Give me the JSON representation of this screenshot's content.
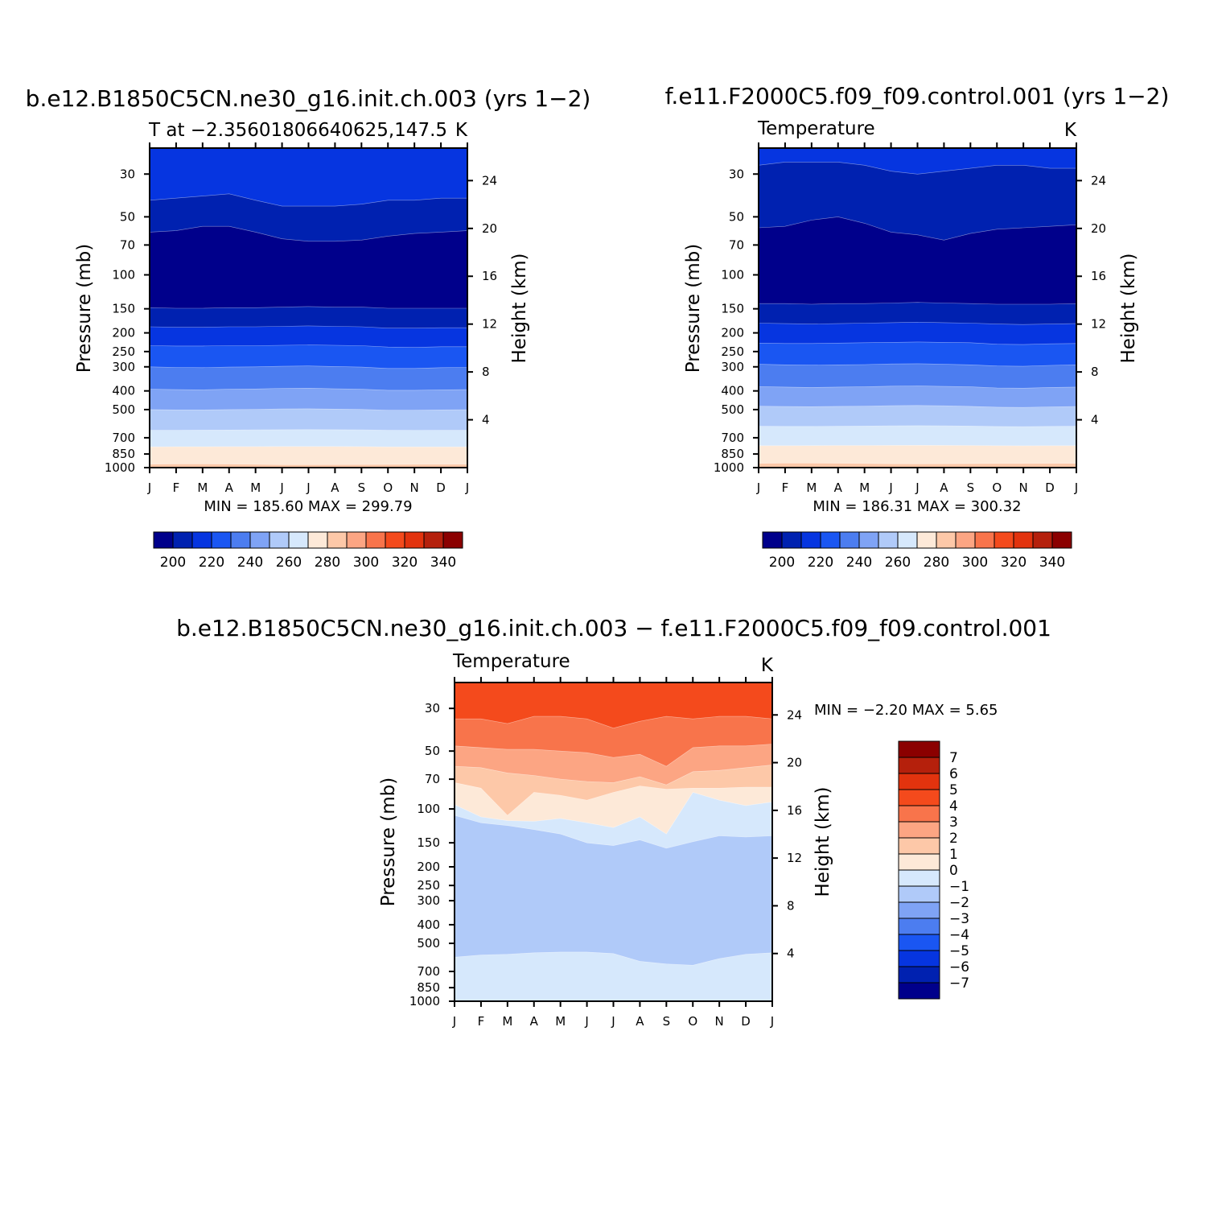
{
  "scales": {
    "abs": {
      "colors": [
        "#00008b",
        "#0021b0",
        "#0635e0",
        "#1a56f2",
        "#4c7df0",
        "#7fa3f5",
        "#b0caf9",
        "#d6e8fc",
        "#fde9d8",
        "#fdc8a8",
        "#fca583",
        "#f8744b",
        "#f44a1c",
        "#e2330e",
        "#b5200c",
        "#8b0000"
      ],
      "labels": [
        "200",
        "220",
        "240",
        "260",
        "280",
        "300",
        "320",
        "340"
      ]
    },
    "diff": {
      "colors": [
        "#00008b",
        "#0021b0",
        "#0635e0",
        "#1a56f2",
        "#4c7df0",
        "#7fa3f5",
        "#b0caf9",
        "#d6e8fc",
        "#fde9d8",
        "#fdc8a8",
        "#fca583",
        "#f8744b",
        "#f44a1c",
        "#e2330e",
        "#b5200c",
        "#8b0000"
      ],
      "labels": [
        "-7",
        "-6",
        "-5",
        "-4",
        "-3",
        "-2",
        "-1",
        "0",
        "1",
        "2",
        "3",
        "4",
        "5",
        "6",
        "7"
      ]
    }
  },
  "chart_data": [
    {
      "type": "contour",
      "title": "b.e12.B1850C5CN.ne30_g16.init.ch.003 (yrs 1−2)",
      "subtitle_left": "T at −2.35601806640625,147.5",
      "subtitle_right": "K",
      "xlabel": "",
      "ylabel": "Pressure (mb)",
      "ylabel_right": "Height (km)",
      "x_ticks": [
        "J",
        "F",
        "M",
        "A",
        "M",
        "J",
        "J",
        "A",
        "S",
        "O",
        "N",
        "D",
        "J"
      ],
      "y_ticks": [
        "30",
        "50",
        "70",
        "100",
        "150",
        "200",
        "250",
        "300",
        "400",
        "500",
        "700",
        "850",
        "1000"
      ],
      "y_ticks_right": [
        "24",
        "20",
        "16",
        "12",
        "8",
        "4"
      ],
      "stats": "MIN = 185.60 MAX = 299.79",
      "colorbar": "abs",
      "bands": [
        {
          "color_index": 2,
          "pressure_top_edge": [
            0,
            0,
            0,
            0,
            0,
            0,
            0,
            0,
            0,
            0,
            0,
            0,
            0
          ]
        },
        {
          "color_index": 1,
          "pressure_top_edge": [
            41,
            40,
            39,
            38,
            41,
            44,
            44,
            44,
            43,
            41,
            41,
            40,
            40
          ]
        },
        {
          "color_index": 0,
          "pressure_top_edge": [
            60,
            59,
            56,
            56,
            60,
            65,
            67,
            67,
            66,
            63,
            61,
            60,
            59
          ]
        },
        {
          "color_index": 1,
          "pressure_top_edge": [
            148,
            149,
            149,
            148,
            148,
            147,
            146,
            147,
            147,
            149,
            149,
            149,
            149
          ]
        },
        {
          "color_index": 2,
          "pressure_top_edge": [
            186,
            187,
            187,
            186,
            186,
            185,
            184,
            185,
            186,
            189,
            189,
            188,
            188
          ]
        },
        {
          "color_index": 3,
          "pressure_top_edge": [
            233,
            234,
            234,
            233,
            233,
            232,
            231,
            232,
            233,
            237,
            238,
            236,
            236
          ]
        },
        {
          "color_index": 4,
          "pressure_top_edge": [
            300,
            302,
            303,
            301,
            300,
            298,
            297,
            299,
            301,
            306,
            306,
            303,
            302
          ]
        },
        {
          "color_index": 5,
          "pressure_top_edge": [
            392,
            394,
            395,
            392,
            391,
            388,
            387,
            390,
            392,
            397,
            397,
            395,
            394
          ]
        },
        {
          "color_index": 6,
          "pressure_top_edge": [
            500,
            502,
            502,
            500,
            499,
            496,
            495,
            497,
            499,
            504,
            504,
            502,
            501
          ]
        },
        {
          "color_index": 7,
          "pressure_top_edge": [
            640,
            640,
            639,
            638,
            637,
            636,
            635,
            636,
            637,
            640,
            641,
            640,
            640
          ]
        },
        {
          "color_index": 8,
          "pressure_top_edge": [
            780,
            779,
            779,
            778,
            778,
            777,
            777,
            777,
            778,
            780,
            780,
            780,
            780
          ]
        },
        {
          "color_index": 9,
          "pressure_top_edge": [
            960,
            958,
            958,
            959,
            962,
            966,
            966,
            965,
            964,
            963,
            962,
            961,
            960
          ]
        },
        {
          "color_index": 10,
          "pressure_top_edge": [
            1000,
            1000,
            1000,
            1000,
            1000,
            1000,
            1000,
            1000,
            1000,
            1000,
            1000,
            1000,
            1000
          ]
        }
      ]
    },
    {
      "type": "contour",
      "title": "f.e11.F2000C5.f09_f09.control.001 (yrs 1−2)",
      "subtitle_left": "Temperature",
      "subtitle_right": "K",
      "xlabel": "",
      "ylabel": "Pressure (mb)",
      "ylabel_right": "Height (km)",
      "x_ticks": [
        "J",
        "F",
        "M",
        "A",
        "M",
        "J",
        "J",
        "A",
        "S",
        "O",
        "N",
        "D",
        "J"
      ],
      "y_ticks": [
        "30",
        "50",
        "70",
        "100",
        "150",
        "200",
        "250",
        "300",
        "400",
        "500",
        "700",
        "850",
        "1000"
      ],
      "y_ticks_right": [
        "24",
        "20",
        "16",
        "12",
        "8",
        "4"
      ],
      "stats": "MIN = 186.31 MAX = 300.32",
      "colorbar": "abs",
      "bands": [
        {
          "color_index": 2,
          "pressure_top_edge": [
            0,
            0,
            0,
            0,
            0,
            0,
            0,
            0,
            0,
            0,
            0,
            0,
            0
          ]
        },
        {
          "color_index": 1,
          "pressure_top_edge": [
            27,
            26,
            26,
            26,
            27,
            29,
            30,
            29,
            28,
            27,
            27,
            28,
            28
          ]
        },
        {
          "color_index": 0,
          "pressure_top_edge": [
            57,
            56,
            52,
            50,
            54,
            60,
            62,
            66,
            61,
            58,
            57,
            56,
            55
          ]
        },
        {
          "color_index": 1,
          "pressure_top_edge": [
            141,
            141,
            142,
            141,
            141,
            140,
            139,
            140,
            141,
            142,
            142,
            142,
            141
          ]
        },
        {
          "color_index": 2,
          "pressure_top_edge": [
            178,
            179,
            180,
            179,
            178,
            177,
            176,
            177,
            178,
            180,
            181,
            180,
            179
          ]
        },
        {
          "color_index": 3,
          "pressure_top_edge": [
            226,
            227,
            227,
            226,
            225,
            224,
            223,
            224,
            225,
            229,
            230,
            228,
            227
          ]
        },
        {
          "color_index": 4,
          "pressure_top_edge": [
            291,
            293,
            294,
            293,
            292,
            290,
            289,
            291,
            293,
            297,
            298,
            295,
            293
          ]
        },
        {
          "color_index": 5,
          "pressure_top_edge": [
            380,
            382,
            384,
            382,
            381,
            378,
            377,
            379,
            381,
            386,
            387,
            384,
            382
          ]
        },
        {
          "color_index": 6,
          "pressure_top_edge": [
            480,
            482,
            483,
            481,
            480,
            477,
            476,
            478,
            481,
            486,
            487,
            484,
            482
          ]
        },
        {
          "color_index": 7,
          "pressure_top_edge": [
            610,
            611,
            611,
            610,
            609,
            607,
            606,
            607,
            609,
            612,
            613,
            611,
            610
          ]
        },
        {
          "color_index": 8,
          "pressure_top_edge": [
            770,
            770,
            769,
            768,
            768,
            767,
            766,
            767,
            768,
            770,
            771,
            770,
            770
          ]
        },
        {
          "color_index": 9,
          "pressure_top_edge": [
            950,
            948,
            948,
            949,
            952,
            956,
            957,
            956,
            954,
            953,
            952,
            951,
            950
          ]
        },
        {
          "color_index": 10,
          "pressure_top_edge": [
            1000,
            1000,
            1000,
            1000,
            1000,
            1000,
            1000,
            1000,
            1000,
            1000,
            1000,
            1000,
            1000
          ]
        }
      ]
    },
    {
      "type": "contour",
      "title": "b.e12.B1850C5CN.ne30_g16.init.ch.003 − f.e11.F2000C5.f09_f09.control.001",
      "subtitle_left": "Temperature",
      "subtitle_right": "K",
      "xlabel": "",
      "ylabel": "Pressure (mb)",
      "ylabel_right": "Height (km)",
      "x_ticks": [
        "J",
        "F",
        "M",
        "A",
        "M",
        "J",
        "J",
        "A",
        "S",
        "O",
        "N",
        "D",
        "J"
      ],
      "y_ticks": [
        "30",
        "50",
        "70",
        "100",
        "150",
        "200",
        "250",
        "300",
        "400",
        "500",
        "700",
        "850",
        "1000"
      ],
      "y_ticks_right": [
        "24",
        "20",
        "16",
        "12",
        "8",
        "4"
      ],
      "stats": "MIN = −2.20 MAX = 5.65",
      "colorbar": "diff",
      "bands": [
        {
          "color_index": 12,
          "pressure_top_edge": [
            0,
            0,
            0,
            0,
            0,
            0,
            0,
            0,
            0,
            0,
            0,
            0,
            0
          ]
        },
        {
          "color_index": 11,
          "pressure_top_edge": [
            34,
            34,
            36,
            33,
            33,
            34,
            38,
            35,
            33,
            34,
            33,
            33,
            34
          ]
        },
        {
          "color_index": 10,
          "pressure_top_edge": [
            47,
            48,
            49,
            49,
            50,
            51,
            54,
            52,
            60,
            48,
            47,
            47,
            46
          ]
        },
        {
          "color_index": 9,
          "pressure_top_edge": [
            60,
            61,
            65,
            67,
            70,
            72,
            73,
            68,
            75,
            64,
            63,
            61,
            59
          ]
        },
        {
          "color_index": 8,
          "pressure_top_edge": [
            73,
            78,
            108,
            82,
            85,
            90,
            82,
            76,
            79,
            78,
            78,
            77,
            77
          ]
        },
        {
          "color_index": 7,
          "pressure_top_edge": [
            95,
            110,
            115,
            116,
            112,
            118,
            125,
            110,
            135,
            82,
            90,
            96,
            92
          ]
        },
        {
          "color_index": 6,
          "pressure_top_edge": [
            108,
            118,
            122,
            128,
            135,
            150,
            155,
            145,
            160,
            148,
            138,
            140,
            138
          ]
        },
        {
          "color_index": 7,
          "pressure_top_edge": [
            590,
            575,
            570,
            560,
            555,
            555,
            565,
            620,
            640,
            650,
            600,
            570,
            560
          ]
        },
        {
          "color_index": 7,
          "pressure_top_edge": [
            1000,
            1000,
            1000,
            1000,
            1000,
            1000,
            1000,
            1000,
            1000,
            1000,
            1000,
            1000,
            1000
          ]
        }
      ]
    }
  ]
}
